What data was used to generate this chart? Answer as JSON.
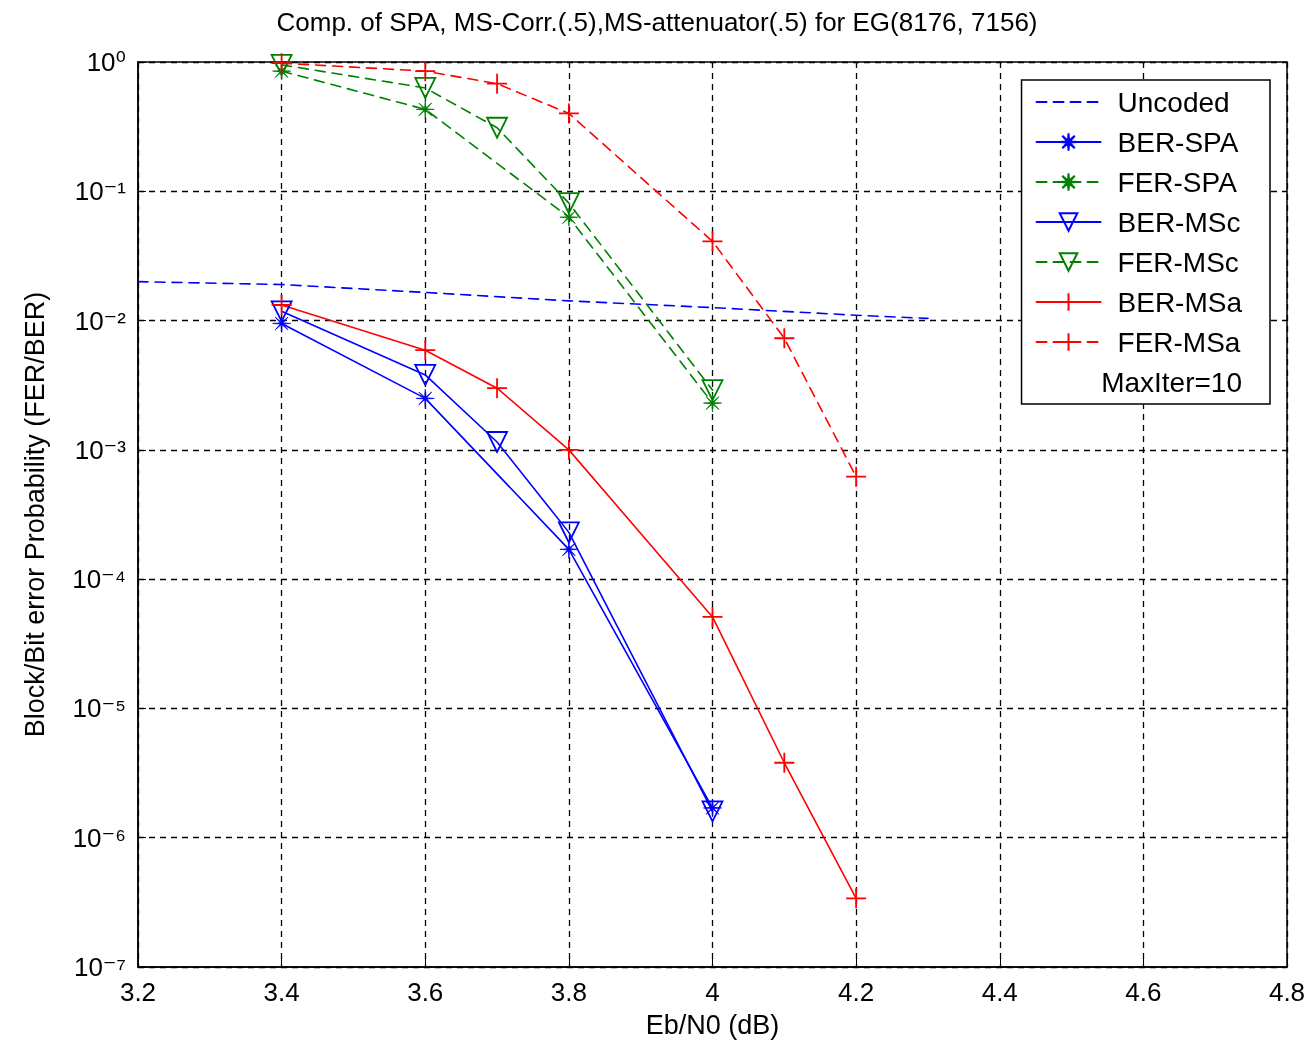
{
  "chart_data": {
    "type": "line",
    "title": "Comp. of SPA, MS-Corr.(.5),MS-attenuator(.5) for EG(8176, 7156)",
    "xlabel": "Eb/N0 (dB)",
    "ylabel": "Block/Bit error Probability (FER/BER)",
    "log": "y",
    "grid": true,
    "legend": "top right",
    "xlim": [
      3.2,
      4.8
    ],
    "xticks": [
      3.2,
      3.4,
      3.6,
      3.8,
      4,
      4.2,
      4.4,
      4.6,
      4.8
    ],
    "ylim": [
      1e-07,
      1
    ],
    "yticks": [
      {
        "value": 1e-07,
        "label": "10⁻⁷"
      },
      {
        "value": 1e-06,
        "label": "10⁻⁶"
      },
      {
        "value": 1e-05,
        "label": "10⁻⁵"
      },
      {
        "value": 0.0001,
        "label": "10⁻⁴"
      },
      {
        "value": 0.001,
        "label": "10⁻³"
      },
      {
        "value": 0.01,
        "label": "10⁻²"
      },
      {
        "value": 0.1,
        "label": "10⁻¹"
      },
      {
        "value": 1,
        "label": "10⁰"
      }
    ],
    "annotations": [
      "MaxIter=10"
    ],
    "series": [
      {
        "name": "Uncoded",
        "color": "#0000ff",
        "line_style": "dashed",
        "marker": "none",
        "x": [
          3.2,
          3.4,
          3.6,
          3.8,
          4.0,
          4.2,
          4.3
        ],
        "values": [
          0.02,
          0.019,
          0.0165,
          0.0142,
          0.0126,
          0.011,
          0.0104
        ]
      },
      {
        "name": "BER-SPA",
        "color": "#0000ff",
        "line_style": "solid",
        "marker": "star",
        "x": [
          3.4,
          3.6,
          3.8,
          4.0
        ],
        "values": [
          0.0095,
          0.0025,
          0.00017,
          1.7e-06
        ]
      },
      {
        "name": "FER-SPA",
        "color": "#008000",
        "line_style": "dashed",
        "marker": "star",
        "x": [
          3.4,
          3.6,
          3.8,
          4.0
        ],
        "values": [
          0.85,
          0.43,
          0.063,
          0.0023
        ]
      },
      {
        "name": "BER-MSc",
        "color": "#0000ff",
        "line_style": "solid",
        "marker": "triangle",
        "x": [
          3.4,
          3.6,
          3.7,
          3.8,
          4.0
        ],
        "values": [
          0.0118,
          0.0038,
          0.00115,
          0.00023,
          1.6e-06
        ]
      },
      {
        "name": "FER-MSc",
        "color": "#008000",
        "line_style": "dashed",
        "marker": "triangle",
        "x": [
          3.4,
          3.6,
          3.7,
          3.8,
          4.0
        ],
        "values": [
          0.95,
          0.63,
          0.31,
          0.081,
          0.0029
        ]
      },
      {
        "name": "BER-MSa",
        "color": "#ff0000",
        "line_style": "solid",
        "marker": "cross",
        "x": [
          3.4,
          3.6,
          3.7,
          3.8,
          4.0,
          4.1,
          4.2
        ],
        "values": [
          0.0132,
          0.0059,
          0.003,
          0.001,
          5.1e-05,
          3.8e-06,
          3.4e-07
        ]
      },
      {
        "name": "FER-MSa",
        "color": "#ff0000",
        "line_style": "dashed",
        "marker": "cross",
        "x": [
          3.4,
          3.6,
          3.7,
          3.8,
          4.0,
          4.1,
          4.2
        ],
        "values": [
          0.98,
          0.85,
          0.68,
          0.4,
          0.041,
          0.0073,
          0.00062
        ]
      }
    ]
  }
}
